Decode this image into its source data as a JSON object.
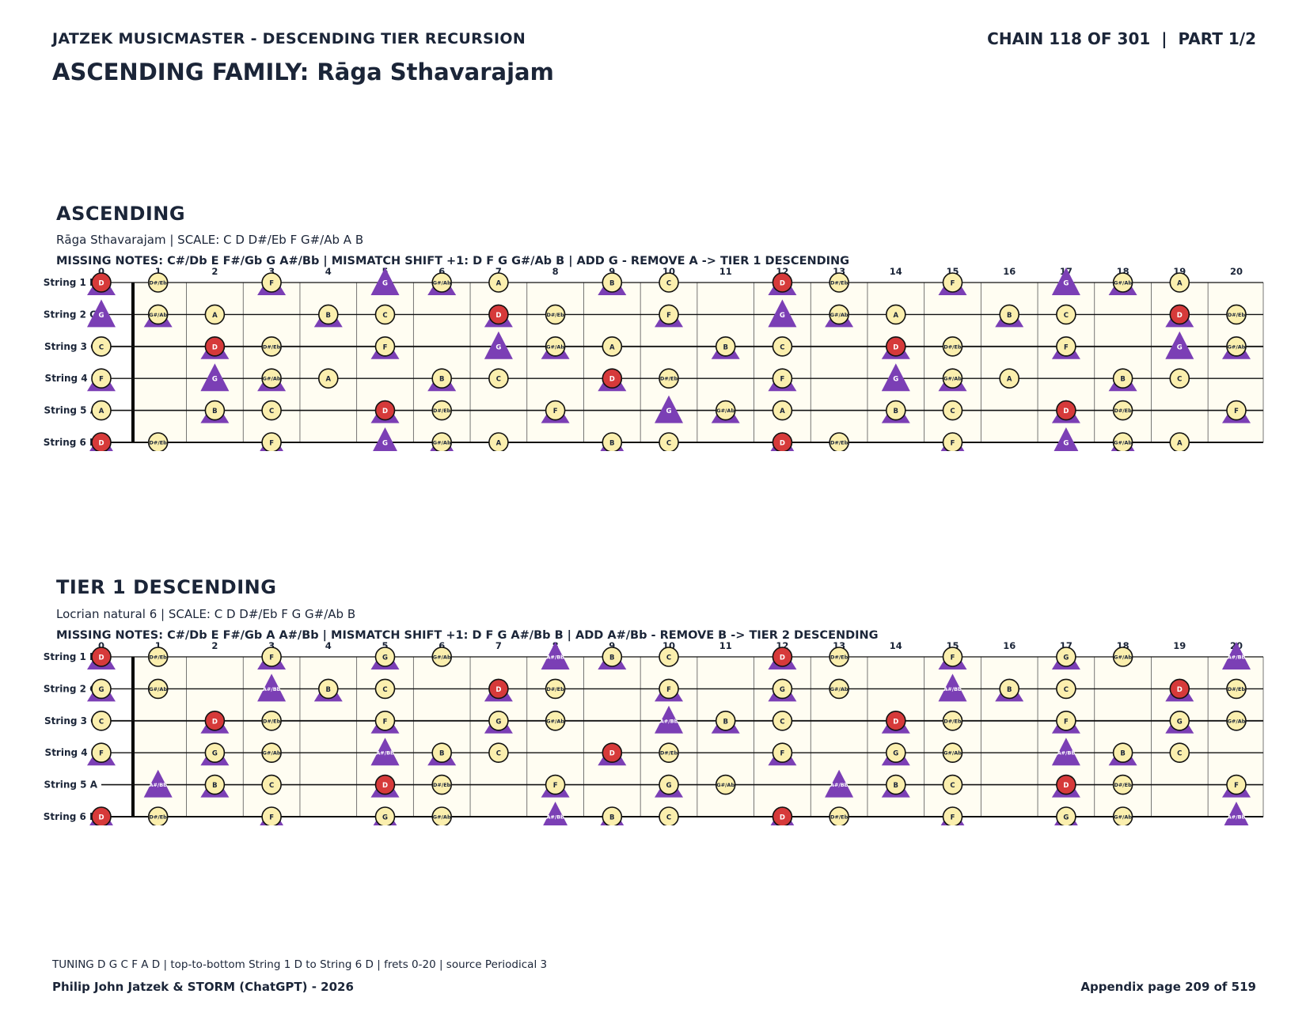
{
  "header": {
    "series_title": "JATZEK MUSICMASTER - DESCENDING TIER RECURSION",
    "chain_info": "CHAIN 118 OF 301  |  PART 1/2",
    "family_title": "ASCENDING FAMILY: Rāga Sthavarajam"
  },
  "colors": {
    "root_fill": "#d63a3a",
    "note_fill": "#fbefae",
    "marker_fill": "#7b3fb5",
    "board_fill": "#fffdf2",
    "text": "#1b2538"
  },
  "sections": [
    {
      "title": "ASCENDING",
      "subtitle": "Rāga Sthavarajam  |  SCALE: C D D#/Eb F G#/Ab A B",
      "missing": "MISSING NOTES: C#/Db E F#/Gb G A#/Bb  |  MISMATCH SHIFT +1: D F G G#/Ab B  |  ADD G - REMOVE A -> TIER 1 DESCENDING",
      "scale_notes": [
        "C",
        "D",
        "D#/Eb",
        "F",
        "G#/Ab",
        "A",
        "B"
      ],
      "marker_notes": [
        "D",
        "F",
        "G",
        "G#/Ab",
        "B"
      ],
      "triangle_only": [
        "G"
      ]
    },
    {
      "title": "TIER 1 DESCENDING",
      "subtitle": "Locrian natural 6  |  SCALE: C D D#/Eb F G G#/Ab B",
      "missing": "MISSING NOTES: C#/Db E F#/Gb A A#/Bb  |  MISMATCH SHIFT +1: D F G A#/Bb B  |  ADD A#/Bb - REMOVE B -> TIER 2 DESCENDING",
      "scale_notes": [
        "C",
        "D",
        "D#/Eb",
        "F",
        "G",
        "G#/Ab",
        "B"
      ],
      "marker_notes": [
        "D",
        "F",
        "G",
        "A#/Bb",
        "B"
      ],
      "triangle_only": [
        "A#/Bb"
      ]
    }
  ],
  "fretboard": {
    "root_note": "D",
    "fret_numbers": [
      "0",
      "1",
      "2",
      "3",
      "4",
      "5",
      "6",
      "7",
      "8",
      "9",
      "10",
      "11",
      "12",
      "13",
      "14",
      "15",
      "16",
      "17",
      "18",
      "19",
      "20"
    ],
    "strings": [
      {
        "label": "String 1 D",
        "open": "D"
      },
      {
        "label": "String 2 G",
        "open": "G"
      },
      {
        "label": "String 3 C",
        "open": "C"
      },
      {
        "label": "String 4 F",
        "open": "F"
      },
      {
        "label": "String 5 A",
        "open": "A"
      },
      {
        "label": "String 6 D",
        "open": "D"
      }
    ],
    "chromatic": [
      "C",
      "C#/Db",
      "D",
      "D#/Eb",
      "E",
      "F",
      "F#/Gb",
      "G",
      "G#/Ab",
      "A",
      "A#/Bb",
      "B"
    ]
  },
  "footer": {
    "tuning_note": "TUNING D G C F A D | top-to-bottom String 1 D to String 6 D | frets 0-20 | source Periodical 3",
    "authors": "Philip John Jatzek & STORM (ChatGPT) - 2026",
    "page": "Appendix page 209 of 519"
  }
}
